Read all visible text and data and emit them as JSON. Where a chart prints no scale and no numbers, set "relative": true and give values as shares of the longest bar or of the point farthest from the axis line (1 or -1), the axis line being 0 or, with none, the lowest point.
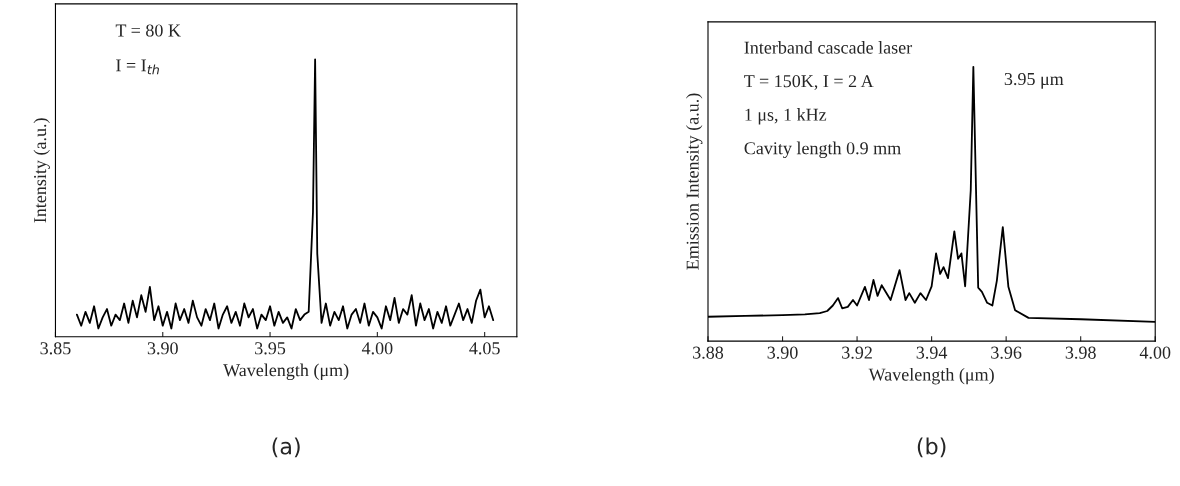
{
  "chart_data": [
    {
      "type": "line",
      "title": "(a)",
      "xlabel": "Wavelength (μm)",
      "ylabel": "Intensity (a.u.)",
      "relative": true,
      "annotations": [
        "T = 80 K",
        "I = I$_{th}$"
      ],
      "xlim": [
        3.85,
        4.065
      ],
      "xticks": [
        {
          "value": 3.85,
          "label": "3.85"
        },
        {
          "value": 3.9,
          "label": "3.90"
        },
        {
          "value": 3.95,
          "label": "3.95"
        },
        {
          "value": 4.0,
          "label": "4.00"
        },
        {
          "value": 4.05,
          "label": "4.05"
        }
      ],
      "x": [
        3.86,
        3.862,
        3.864,
        3.866,
        3.868,
        3.87,
        3.872,
        3.874,
        3.876,
        3.878,
        3.88,
        3.882,
        3.884,
        3.886,
        3.888,
        3.89,
        3.892,
        3.894,
        3.896,
        3.898,
        3.9,
        3.902,
        3.904,
        3.906,
        3.908,
        3.91,
        3.912,
        3.914,
        3.916,
        3.918,
        3.92,
        3.922,
        3.924,
        3.926,
        3.928,
        3.93,
        3.932,
        3.934,
        3.936,
        3.938,
        3.94,
        3.942,
        3.944,
        3.946,
        3.948,
        3.95,
        3.952,
        3.954,
        3.956,
        3.958,
        3.96,
        3.962,
        3.964,
        3.966,
        3.968,
        3.97,
        3.971,
        3.972,
        3.974,
        3.976,
        3.978,
        3.98,
        3.982,
        3.984,
        3.986,
        3.988,
        3.99,
        3.992,
        3.994,
        3.996,
        3.998,
        4.0,
        4.002,
        4.004,
        4.006,
        4.008,
        4.01,
        4.012,
        4.014,
        4.016,
        4.018,
        4.02,
        4.022,
        4.024,
        4.026,
        4.028,
        4.03,
        4.032,
        4.034,
        4.036,
        4.038,
        4.04,
        4.042,
        4.044,
        4.046,
        4.048,
        4.05,
        4.052,
        4.054
      ],
      "series": [
        {
          "color": "#000000",
          "values": [
            0.08,
            0.04,
            0.09,
            0.05,
            0.11,
            0.03,
            0.07,
            0.1,
            0.04,
            0.08,
            0.06,
            0.12,
            0.05,
            0.13,
            0.07,
            0.15,
            0.09,
            0.18,
            0.06,
            0.11,
            0.04,
            0.09,
            0.03,
            0.12,
            0.06,
            0.1,
            0.05,
            0.13,
            0.07,
            0.04,
            0.1,
            0.06,
            0.12,
            0.03,
            0.08,
            0.11,
            0.05,
            0.09,
            0.04,
            0.12,
            0.07,
            0.1,
            0.03,
            0.08,
            0.06,
            0.11,
            0.04,
            0.09,
            0.05,
            0.07,
            0.03,
            0.1,
            0.06,
            0.08,
            0.09,
            0.45,
            1.0,
            0.3,
            0.05,
            0.12,
            0.04,
            0.09,
            0.06,
            0.11,
            0.03,
            0.08,
            0.1,
            0.05,
            0.12,
            0.04,
            0.09,
            0.07,
            0.03,
            0.11,
            0.06,
            0.14,
            0.05,
            0.1,
            0.08,
            0.15,
            0.04,
            0.12,
            0.06,
            0.1,
            0.03,
            0.09,
            0.05,
            0.11,
            0.04,
            0.08,
            0.12,
            0.06,
            0.1,
            0.05,
            0.13,
            0.17,
            0.07,
            0.11,
            0.06
          ]
        }
      ]
    },
    {
      "type": "line",
      "title": "(b)",
      "xlabel": "Wavelength (μm)",
      "ylabel": "Emission Intensity (a.u.)",
      "relative": true,
      "annotations": [
        "Interband cascade laser",
        "T = 150K, I = 2 A",
        "1 μs, 1 kHz",
        "Cavity length 0.9 mm",
        {
          "text": "3.95 μm",
          "x": 3.9512,
          "y": 1.0
        }
      ],
      "xlim": [
        3.88,
        4.0
      ],
      "xticks": [
        {
          "value": 3.88,
          "label": "3.88"
        },
        {
          "value": 3.9,
          "label": "3.90"
        },
        {
          "value": 3.92,
          "label": "3.92"
        },
        {
          "value": 3.94,
          "label": "3.94"
        },
        {
          "value": 3.96,
          "label": "3.96"
        },
        {
          "value": 3.98,
          "label": "3.98"
        },
        {
          "value": 4.0,
          "label": "4.00"
        }
      ],
      "x": [
        3.88,
        3.89,
        3.9,
        3.906,
        3.91,
        3.912,
        3.9135,
        3.9149,
        3.916,
        3.9175,
        3.9189,
        3.92,
        3.9221,
        3.9232,
        3.9244,
        3.9255,
        3.9266,
        3.929,
        3.9314,
        3.933,
        3.934,
        3.9355,
        3.937,
        3.9385,
        3.94,
        3.9412,
        3.9423,
        3.9432,
        3.9444,
        3.9461,
        3.9471,
        3.948,
        3.949,
        3.9505,
        3.9512,
        3.952,
        3.9525,
        3.9535,
        3.9549,
        3.9563,
        3.9575,
        3.9591,
        3.9606,
        3.9624,
        3.966,
        3.98,
        4.0
      ],
      "series": [
        {
          "color": "#000000",
          "values": [
            0.089,
            0.092,
            0.095,
            0.098,
            0.102,
            0.11,
            0.13,
            0.157,
            0.12,
            0.125,
            0.15,
            0.13,
            0.198,
            0.15,
            0.223,
            0.165,
            0.204,
            0.15,
            0.259,
            0.15,
            0.175,
            0.14,
            0.175,
            0.15,
            0.2,
            0.32,
            0.245,
            0.27,
            0.23,
            0.4,
            0.3,
            0.32,
            0.2,
            0.55,
            1.0,
            0.5,
            0.195,
            0.18,
            0.14,
            0.13,
            0.22,
            0.416,
            0.198,
            0.113,
            0.085,
            0.08,
            0.07
          ]
        }
      ]
    }
  ]
}
